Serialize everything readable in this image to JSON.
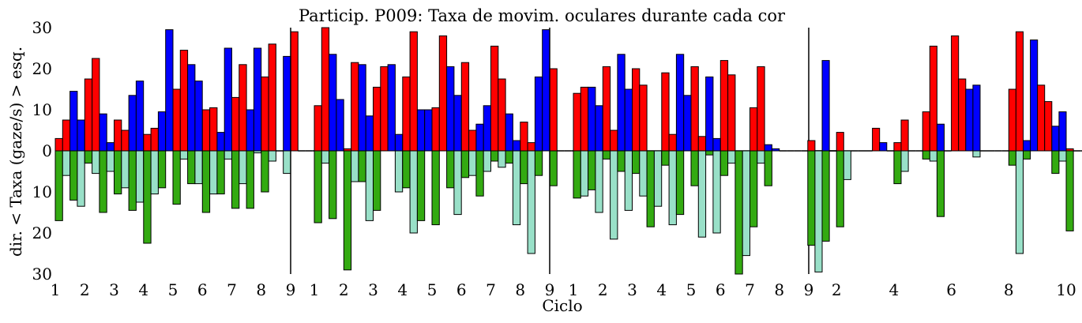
{
  "chart_data": {
    "type": "bar",
    "title": "Particip. P009: Taxa de movim. oculares durante cada cor",
    "xlabel": "Ciclo",
    "ylabel": "dir. < Taxa (gaze/s) > esq.",
    "ylim": [
      -30,
      30
    ],
    "yticks": [
      30,
      20,
      10,
      0,
      10,
      20,
      30
    ],
    "grid": false,
    "legend": "none",
    "colors": {
      "red": "#ff0000",
      "blue": "#0000ff",
      "green": "#33aa11",
      "teal": "#99e0c8",
      "edge": "#000000"
    },
    "panels": [
      {
        "xticks": [
          "1",
          "2",
          "3",
          "4",
          "5",
          "6",
          "7",
          "8",
          "9"
        ],
        "cycles": [
          {
            "up": [
              3,
              7.5,
              14.5,
              7.5
            ],
            "down": [
              17,
              6,
              12,
              13.5
            ]
          },
          {
            "up": [
              17.5,
              22.5,
              9,
              2
            ],
            "down": [
              3,
              5.5,
              15,
              5
            ]
          },
          {
            "up": [
              7.5,
              5,
              13.5,
              17
            ],
            "down": [
              10.5,
              9,
              14.5,
              12.5
            ]
          },
          {
            "up": [
              4,
              5.5,
              9.5,
              29.5
            ],
            "down": [
              22.5,
              10.5,
              9,
              0
            ]
          },
          {
            "up": [
              15,
              24.5,
              21,
              17
            ],
            "down": [
              13,
              2,
              8,
              8
            ]
          },
          {
            "up": [
              10,
              10.5,
              4.5,
              25
            ],
            "down": [
              15,
              10.5,
              10.5,
              2
            ]
          },
          {
            "up": [
              13,
              21,
              10,
              25
            ],
            "down": [
              14,
              8,
              14,
              0.5
            ]
          },
          {
            "up": [
              18,
              26,
              0,
              23
            ],
            "down": [
              10,
              2.5,
              0,
              5.5
            ]
          },
          {
            "up": [
              29,
              0,
              0,
              0
            ],
            "down": [
              0,
              0,
              0,
              0
            ]
          }
        ]
      },
      {
        "xticks": [
          "1",
          "2",
          "3",
          "4",
          "5",
          "6",
          "7",
          "8",
          "9"
        ],
        "cycles": [
          {
            "up": [
              11,
              30,
              23.5,
              12.5
            ],
            "down": [
              17.5,
              3,
              16.5,
              0
            ]
          },
          {
            "up": [
              0.5,
              21.5,
              21,
              8.5
            ],
            "down": [
              29,
              7.5,
              7.5,
              17
            ]
          },
          {
            "up": [
              15.5,
              20.5,
              21,
              4
            ],
            "down": [
              14.5,
              0,
              0,
              10
            ]
          },
          {
            "up": [
              18,
              29,
              10,
              10
            ],
            "down": [
              9,
              20,
              17,
              0
            ]
          },
          {
            "up": [
              10.5,
              28,
              20.5,
              13.5
            ],
            "down": [
              18,
              0,
              9,
              15.5
            ]
          },
          {
            "up": [
              21.5,
              5,
              6.5,
              11
            ],
            "down": [
              6.5,
              6,
              11,
              5
            ]
          },
          {
            "up": [
              25.5,
              17.5,
              9,
              2.5
            ],
            "down": [
              2.5,
              4,
              3,
              18
            ]
          },
          {
            "up": [
              7,
              2,
              18,
              29.5
            ],
            "down": [
              8,
              25,
              6,
              0
            ]
          },
          {
            "up": [
              20,
              0,
              0,
              0
            ],
            "down": [
              8.5,
              0,
              0,
              0
            ]
          }
        ]
      },
      {
        "xticks": [
          "1",
          "2",
          "3",
          "4",
          "5",
          "6",
          "7",
          "8",
          "9"
        ],
        "cycles": [
          {
            "up": [
              14,
              15.5,
              15.5,
              11
            ],
            "down": [
              11.5,
              11,
              9.5,
              15
            ]
          },
          {
            "up": [
              20.5,
              5,
              23.5,
              15
            ],
            "down": [
              2,
              21.5,
              5,
              14.5
            ]
          },
          {
            "up": [
              20,
              16,
              0,
              0
            ],
            "down": [
              5.5,
              11,
              18.5,
              13.5
            ]
          },
          {
            "up": [
              19,
              4,
              23.5,
              13.5
            ],
            "down": [
              3.5,
              18,
              15.5,
              0
            ]
          },
          {
            "up": [
              20.5,
              3.5,
              18,
              3
            ],
            "down": [
              8.5,
              21,
              1,
              20
            ]
          },
          {
            "up": [
              22,
              18.5,
              0,
              0
            ],
            "down": [
              6,
              3,
              30,
              25.5
            ]
          },
          {
            "up": [
              10.5,
              20.5,
              1.5,
              0.5
            ],
            "down": [
              18.5,
              3,
              8.5,
              0
            ]
          },
          {
            "up": [
              0,
              0,
              0,
              0
            ],
            "down": [
              0,
              0,
              0,
              0
            ]
          },
          {
            "up": [
              0,
              0,
              0,
              0
            ],
            "down": [
              0,
              0,
              0,
              0
            ]
          }
        ]
      },
      {
        "xticks": [
          "2",
          "4",
          "6",
          "8",
          "10"
        ],
        "tick_at": [
          2,
          4,
          6,
          8,
          10
        ],
        "cycles": [
          {
            "up": [
              2.5,
              0,
              22,
              0
            ],
            "down": [
              23,
              29.5,
              22,
              0
            ]
          },
          {
            "up": [
              4.5,
              0,
              0,
              0
            ],
            "down": [
              18.5,
              7,
              0,
              0
            ]
          },
          {
            "up": [
              0,
              5.5,
              2,
              0
            ],
            "down": [
              0,
              0,
              0,
              0
            ]
          },
          {
            "up": [
              2,
              7.5,
              0,
              0
            ],
            "down": [
              8,
              5,
              0,
              0
            ]
          },
          {
            "up": [
              9.5,
              25.5,
              6.5,
              0
            ],
            "down": [
              2,
              2.5,
              16,
              0
            ]
          },
          {
            "up": [
              28,
              17.5,
              15,
              16
            ],
            "down": [
              0,
              0,
              0,
              1.5
            ]
          },
          {
            "up": [
              0,
              0,
              0,
              0
            ],
            "down": [
              0,
              0,
              0,
              0
            ]
          },
          {
            "up": [
              15,
              29,
              2.5,
              27
            ],
            "down": [
              3.5,
              25,
              2,
              0
            ]
          },
          {
            "up": [
              16,
              12,
              6,
              9.5
            ],
            "down": [
              0,
              0,
              5.5,
              2.5
            ]
          },
          {
            "up": [
              0.5,
              0,
              0,
              0
            ],
            "down": [
              19.5,
              0,
              0,
              0
            ]
          }
        ]
      }
    ]
  }
}
